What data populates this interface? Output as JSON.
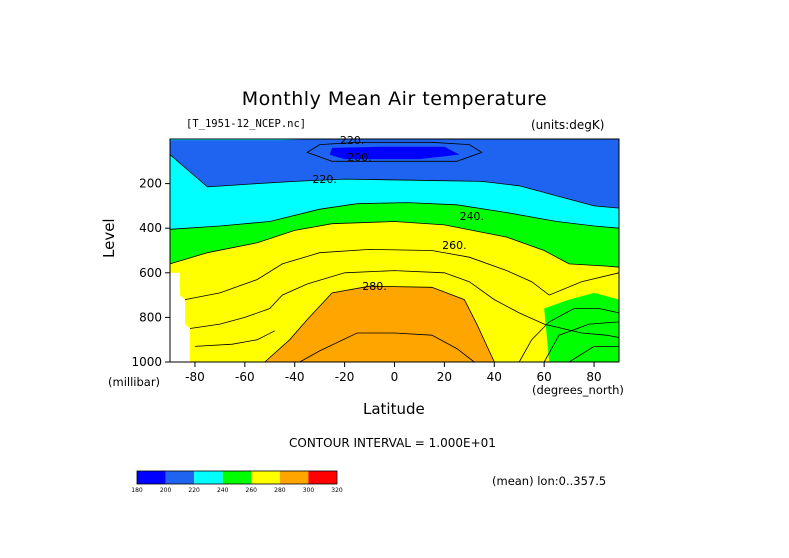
{
  "title": "Monthly Mean Air temperature",
  "file_label": "[T_1951-12_NCEP.nc]",
  "units_label": "(units:degK)",
  "interval_label": "CONTOUR INTERVAL = 1.000E+01",
  "mean_note": "(mean) lon:0..357.5",
  "chart_data": {
    "type": "heatmap",
    "title": "Monthly Mean Air temperature",
    "xlabel": "Latitude",
    "x_unit": "(degrees_north)",
    "ylabel": "Level",
    "y_unit": "(millibar)",
    "xlim": [
      -90,
      90
    ],
    "ylim": [
      1000,
      0
    ],
    "x_ticks": [
      -80,
      -60,
      -40,
      -20,
      0,
      20,
      40,
      60,
      80
    ],
    "y_ticks": [
      200,
      400,
      600,
      800,
      1000
    ],
    "contour_levels": [
      180,
      200,
      220,
      240,
      260,
      280,
      300,
      320
    ],
    "contour_labels": [
      {
        "text": "220.",
        "lat": -17,
        "level": 5
      },
      {
        "text": "200.",
        "lat": -14,
        "level": 80
      },
      {
        "text": "220.",
        "lat": -28,
        "level": 180
      },
      {
        "text": "240.",
        "lat": 31,
        "level": 345
      },
      {
        "text": "260.",
        "lat": 24,
        "level": 475
      },
      {
        "text": "280.",
        "lat": -8,
        "level": 660
      }
    ],
    "colorbar": {
      "ticks": [
        "180",
        "200",
        "220",
        "240",
        "260",
        "280",
        "300",
        "320"
      ],
      "colors": [
        "#0000ff",
        "#1e64f0",
        "#00ffff",
        "#00ff00",
        "#ffff00",
        "#ffa500",
        "#ff0000"
      ]
    },
    "band_colors": {
      "200-220": "#1e64f0",
      "below-200": "#0000ff",
      "220-240": "#00ffff",
      "240-260": "#00ff00",
      "260-280": "#ffff00",
      "280-300": "#ffa500"
    },
    "missing_color": "#ffffff"
  }
}
